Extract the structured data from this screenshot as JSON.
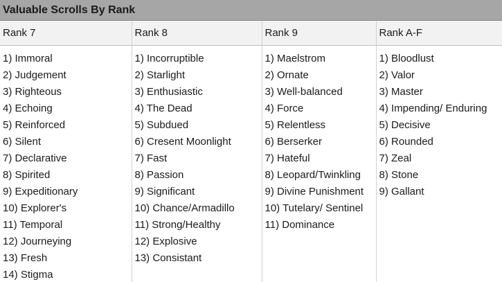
{
  "sheet": {
    "title": "Valuable Scrolls By Rank",
    "columns": [
      "Rank 7",
      "Rank 8",
      "Rank 9",
      "Rank A-F"
    ],
    "rows": [
      [
        "1) Immoral",
        "1) Incorruptible",
        "1) Maelstrom",
        "1) Bloodlust"
      ],
      [
        "2) Judgement",
        "2) Starlight",
        "2) Ornate",
        "2) Valor"
      ],
      [
        "3) Righteous",
        "3) Enthusiastic",
        "3) Well-balanced",
        "3) Master"
      ],
      [
        "4) Echoing",
        "4) The Dead",
        "4) Force",
        "4) Impending/ Enduring"
      ],
      [
        "5) Reinforced",
        "5) Subdued",
        "5) Relentless",
        "5) Decisive"
      ],
      [
        "6) Silent",
        "6) Cresent Moonlight",
        "6) Berserker",
        "6) Rounded"
      ],
      [
        "7) Declarative",
        "7) Fast",
        "7) Hateful",
        "7) Zeal"
      ],
      [
        "8) Spirited",
        "8) Passion",
        "8) Leopard/Twinkling",
        "8) Stone"
      ],
      [
        "9) Expeditionary",
        "9) Significant",
        "9) Divine Punishment",
        "9) Gallant"
      ],
      [
        "10) Explorer's",
        "10) Chance/Armadillo",
        "10) Tutelary/ Sentinel",
        ""
      ],
      [
        "11) Temporal",
        "11) Strong/Healthy",
        "11) Dominance",
        ""
      ],
      [
        "12) Journeying",
        "12) Explosive",
        "",
        ""
      ],
      [
        "13) Fresh",
        "13) Consistant",
        "",
        ""
      ],
      [
        "14) Stigma",
        "",
        "",
        ""
      ]
    ]
  }
}
